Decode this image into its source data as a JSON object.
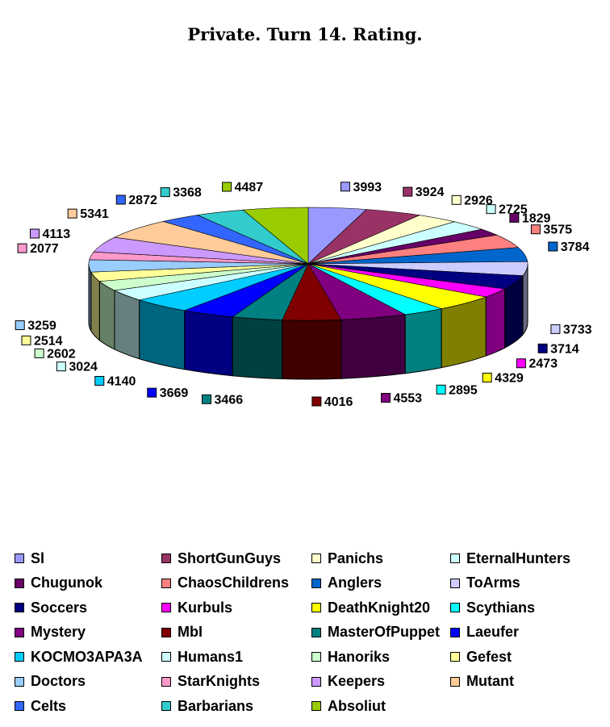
{
  "chart_data": {
    "type": "pie",
    "title": "Private. Turn 14. Rating.",
    "legend_position": "bottom",
    "series": [
      {
        "name": "Sl",
        "value": 3993,
        "color": "#9999FF"
      },
      {
        "name": "ShortGunGuys",
        "value": 3924,
        "color": "#993366"
      },
      {
        "name": "Panichs",
        "value": 2926,
        "color": "#FFFFCC"
      },
      {
        "name": "EternalHunters",
        "value": 2725,
        "color": "#CCFFFF"
      },
      {
        "name": "Chugunok",
        "value": 1829,
        "color": "#660066"
      },
      {
        "name": "ChaosChildrens",
        "value": 3575,
        "color": "#FF8080"
      },
      {
        "name": "Anglers",
        "value": 3784,
        "color": "#0066CC"
      },
      {
        "name": "ToArms",
        "value": 3733,
        "color": "#CCCCFF"
      },
      {
        "name": "Soccers",
        "value": 3714,
        "color": "#000080"
      },
      {
        "name": "Kurbuls",
        "value": 2473,
        "color": "#FF00FF"
      },
      {
        "name": "DeathKnight20",
        "value": 4329,
        "color": "#FFFF00"
      },
      {
        "name": "Scythians",
        "value": 2895,
        "color": "#00FFFF"
      },
      {
        "name": "Mystery",
        "value": 4553,
        "color": "#800080"
      },
      {
        "name": "MbI",
        "value": 4016,
        "color": "#800000"
      },
      {
        "name": "MasterOfPuppet",
        "value": 3466,
        "color": "#008080"
      },
      {
        "name": "Laeufer",
        "value": 3669,
        "color": "#0000FF"
      },
      {
        "name": "KOCMO3APA3A",
        "value": 4140,
        "color": "#00CCFF"
      },
      {
        "name": "Humans1",
        "value": 3024,
        "color": "#CCFFFF"
      },
      {
        "name": "Hanoriks",
        "value": 2602,
        "color": "#CCFFCC"
      },
      {
        "name": "Gefest",
        "value": 2514,
        "color": "#FFFF99"
      },
      {
        "name": "Doctors",
        "value": 3259,
        "color": "#99CCFF"
      },
      {
        "name": "StarKnights",
        "value": 2077,
        "color": "#FF99CC"
      },
      {
        "name": "Keepers",
        "value": 4113,
        "color": "#CC99FF"
      },
      {
        "name": "Mutant",
        "value": 5341,
        "color": "#FFCC99"
      },
      {
        "name": "Celts",
        "value": 2872,
        "color": "#3366FF"
      },
      {
        "name": "Barbarians",
        "value": 3368,
        "color": "#33CCCC"
      },
      {
        "name": "Absoliut",
        "value": 4487,
        "color": "#99CC00"
      }
    ]
  }
}
